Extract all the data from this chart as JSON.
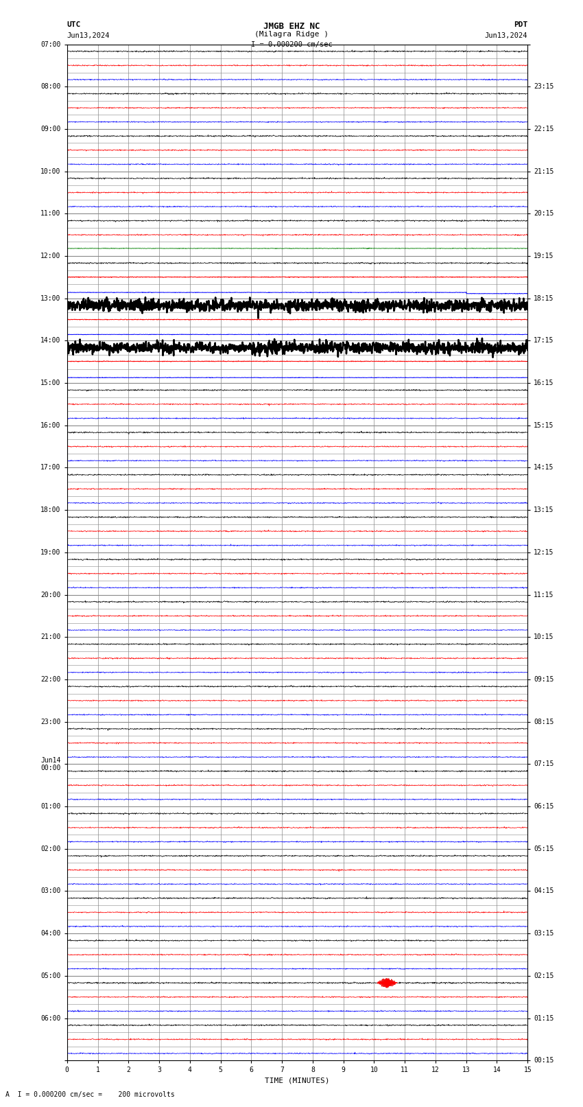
{
  "title_line1": "JMGB EHZ NC",
  "title_line2": "(Milagra Ridge )",
  "scale_label": "I = 0.000200 cm/sec",
  "left_header": "UTC",
  "left_date": "Jun13,2024",
  "right_header": "PDT",
  "right_date": "Jun13,2024",
  "bottom_label": "TIME (MINUTES)",
  "bottom_note": "A  I = 0.000200 cm/sec =    200 microvolts",
  "xlabel_ticks": [
    0,
    1,
    2,
    3,
    4,
    5,
    6,
    7,
    8,
    9,
    10,
    11,
    12,
    13,
    14,
    15
  ],
  "utc_labels": [
    "07:00",
    "08:00",
    "09:00",
    "10:00",
    "11:00",
    "12:00",
    "13:00",
    "14:00",
    "15:00",
    "16:00",
    "17:00",
    "18:00",
    "19:00",
    "20:00",
    "21:00",
    "22:00",
    "23:00",
    "Jun14\n00:00",
    "01:00",
    "02:00",
    "03:00",
    "04:00",
    "05:00",
    "06:00"
  ],
  "pdt_labels": [
    "00:15",
    "01:15",
    "02:15",
    "03:15",
    "04:15",
    "05:15",
    "06:15",
    "07:15",
    "08:15",
    "09:15",
    "10:15",
    "11:15",
    "12:15",
    "13:15",
    "14:15",
    "15:15",
    "16:15",
    "17:15",
    "18:15",
    "19:15",
    "20:15",
    "21:15",
    "22:15",
    "23:15"
  ],
  "n_rows": 72,
  "rows_per_hour": 3,
  "bg_color": "white",
  "colors_cycle": [
    "black",
    "red",
    "blue",
    "green"
  ],
  "grid_color": "#888888",
  "xmin": 0,
  "xmax": 15,
  "noise_amplitude": 0.03,
  "figsize": [
    8.5,
    16.13
  ],
  "dpi": 100,
  "special_red_flat_row": 18,
  "special_blue_flat_row": 19,
  "special_green_flat_row": 20,
  "special_black_thick_row": 21,
  "special_red_flat_row2": 22,
  "special_blue_flat_row2": 23,
  "special_green_flat_row2": 24,
  "event_row": 58,
  "event_xstart": 10.1,
  "event_xend": 10.75,
  "event_amplitude": 0.32
}
